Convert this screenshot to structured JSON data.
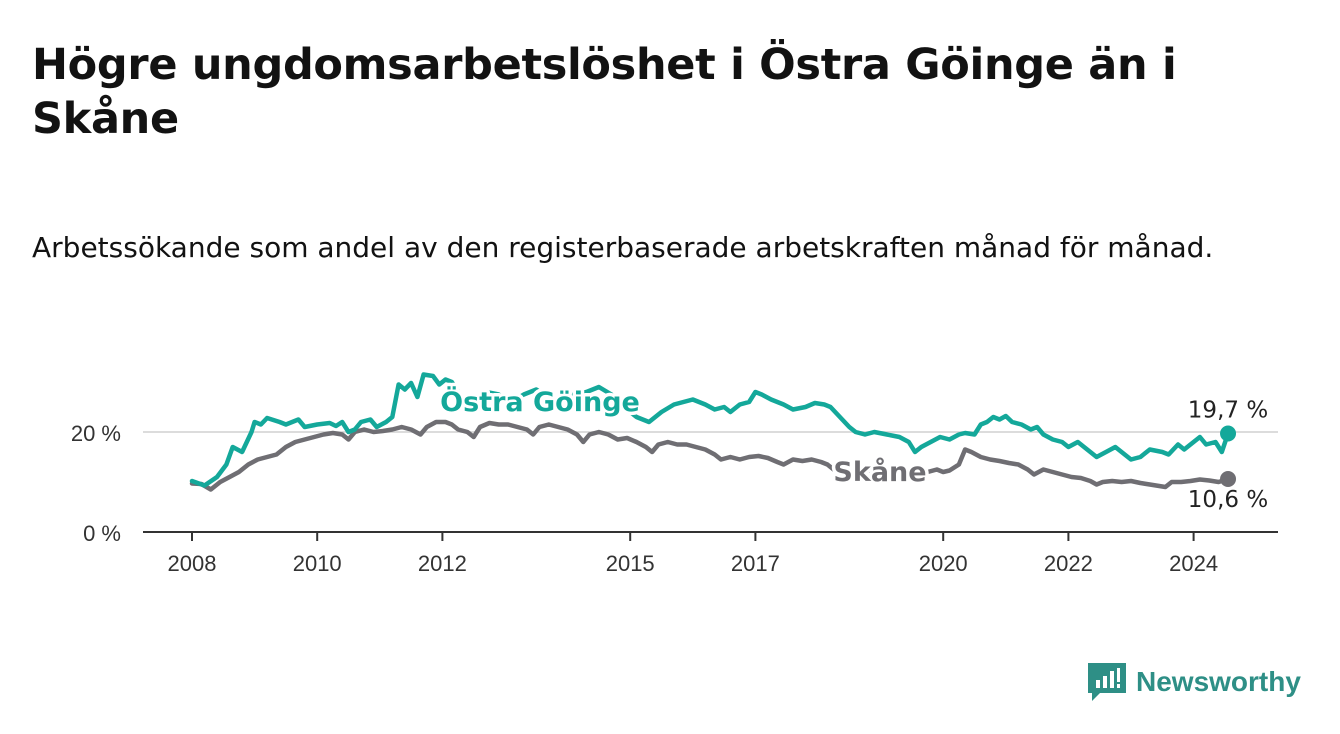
{
  "title": "Högre ungdomsarbetslöshet i Östra Göinge än i Skåne",
  "subtitle": "Arbetssökande som andel av den registerbaserade arbetskraften månad för månad.",
  "brand": {
    "name": "Newsworthy",
    "icon": "newsworthy-logo-icon",
    "color": "#2e8f86"
  },
  "chart_data": {
    "type": "line",
    "title": "Högre ungdomsarbetslöshet i Östra Göinge än i Skåne",
    "subtitle": "Arbetssökande som andel av den registerbaserade arbetskraften månad för månad.",
    "x_ticks": [
      "2008",
      "2010",
      "2012",
      "2015",
      "2017",
      "2020",
      "2022",
      "2024"
    ],
    "y_ticks": [
      "0 %",
      "20 %"
    ],
    "y_tick_values": [
      0,
      20
    ],
    "xlim": [
      2007.6,
      2025.2
    ],
    "ylim": [
      0,
      32
    ],
    "grid": "horizontal",
    "series": [
      {
        "name": "Östra Göinge",
        "color": "#14a89a",
        "end_label": "19,7 %",
        "points": [
          [
            2008.0,
            10.2
          ],
          [
            2008.2,
            9.3
          ],
          [
            2008.4,
            11.0
          ],
          [
            2008.55,
            13.5
          ],
          [
            2008.65,
            17.0
          ],
          [
            2008.8,
            16.0
          ],
          [
            2008.95,
            20.0
          ],
          [
            2009.0,
            22.0
          ],
          [
            2009.1,
            21.5
          ],
          [
            2009.2,
            22.8
          ],
          [
            2009.4,
            22.0
          ],
          [
            2009.5,
            21.5
          ],
          [
            2009.7,
            22.5
          ],
          [
            2009.8,
            21.0
          ],
          [
            2010.0,
            21.5
          ],
          [
            2010.2,
            21.8
          ],
          [
            2010.3,
            21.2
          ],
          [
            2010.4,
            22.0
          ],
          [
            2010.5,
            20.0
          ],
          [
            2010.6,
            20.5
          ],
          [
            2010.7,
            22.0
          ],
          [
            2010.85,
            22.5
          ],
          [
            2010.95,
            21.0
          ],
          [
            2011.1,
            22.0
          ],
          [
            2011.2,
            23.0
          ],
          [
            2011.3,
            29.5
          ],
          [
            2011.4,
            28.5
          ],
          [
            2011.5,
            29.8
          ],
          [
            2011.6,
            27.0
          ],
          [
            2011.7,
            31.5
          ],
          [
            2011.85,
            31.2
          ],
          [
            2011.95,
            29.5
          ],
          [
            2012.05,
            30.5
          ],
          [
            2012.15,
            30.0
          ],
          [
            2012.3,
            27.0
          ],
          [
            2012.5,
            25.0
          ],
          [
            2012.7,
            28.0
          ],
          [
            2012.9,
            27.5
          ],
          [
            2013.1,
            26.0
          ],
          [
            2013.3,
            27.5
          ],
          [
            2013.5,
            28.5
          ],
          [
            2013.7,
            27.0
          ],
          [
            2013.9,
            26.5
          ],
          [
            2014.1,
            27.5
          ],
          [
            2014.3,
            28.0
          ],
          [
            2014.5,
            29.0
          ],
          [
            2014.7,
            27.5
          ],
          [
            2014.9,
            25.0
          ],
          [
            2015.1,
            23.0
          ],
          [
            2015.3,
            22.0
          ],
          [
            2015.5,
            24.0
          ],
          [
            2015.7,
            25.5
          ],
          [
            2015.85,
            26.0
          ],
          [
            2016.0,
            26.5
          ],
          [
            2016.2,
            25.5
          ],
          [
            2016.35,
            24.5
          ],
          [
            2016.5,
            25.0
          ],
          [
            2016.6,
            24.0
          ],
          [
            2016.75,
            25.5
          ],
          [
            2016.9,
            26.0
          ],
          [
            2017.0,
            28.0
          ],
          [
            2017.1,
            27.5
          ],
          [
            2017.25,
            26.5
          ],
          [
            2017.45,
            25.5
          ],
          [
            2017.6,
            24.5
          ],
          [
            2017.8,
            25.0
          ],
          [
            2017.95,
            25.8
          ],
          [
            2018.1,
            25.5
          ],
          [
            2018.2,
            25.0
          ],
          [
            2018.35,
            23.0
          ],
          [
            2018.5,
            21.0
          ],
          [
            2018.6,
            20.0
          ],
          [
            2018.75,
            19.5
          ],
          [
            2018.9,
            20.0
          ],
          [
            2019.1,
            19.5
          ],
          [
            2019.3,
            19.0
          ],
          [
            2019.45,
            18.0
          ],
          [
            2019.55,
            16.0
          ],
          [
            2019.65,
            17.0
          ],
          [
            2019.8,
            18.0
          ],
          [
            2019.95,
            19.0
          ],
          [
            2020.1,
            18.5
          ],
          [
            2020.25,
            19.5
          ],
          [
            2020.35,
            19.8
          ],
          [
            2020.5,
            19.5
          ],
          [
            2020.6,
            21.5
          ],
          [
            2020.7,
            22.0
          ],
          [
            2020.8,
            23.0
          ],
          [
            2020.9,
            22.5
          ],
          [
            2021.0,
            23.2
          ],
          [
            2021.1,
            22.0
          ],
          [
            2021.25,
            21.5
          ],
          [
            2021.4,
            20.5
          ],
          [
            2021.5,
            21.0
          ],
          [
            2021.6,
            19.5
          ],
          [
            2021.75,
            18.5
          ],
          [
            2021.9,
            18.0
          ],
          [
            2022.0,
            17.0
          ],
          [
            2022.15,
            18.0
          ],
          [
            2022.3,
            16.5
          ],
          [
            2022.45,
            15.0
          ],
          [
            2022.6,
            16.0
          ],
          [
            2022.75,
            17.0
          ],
          [
            2022.9,
            15.5
          ],
          [
            2023.0,
            14.5
          ],
          [
            2023.15,
            15.0
          ],
          [
            2023.3,
            16.5
          ],
          [
            2023.5,
            16.0
          ],
          [
            2023.6,
            15.5
          ],
          [
            2023.75,
            17.5
          ],
          [
            2023.85,
            16.5
          ],
          [
            2024.0,
            18.0
          ],
          [
            2024.1,
            19.0
          ],
          [
            2024.2,
            17.5
          ],
          [
            2024.35,
            18.0
          ],
          [
            2024.45,
            16.0
          ],
          [
            2024.55,
            19.7
          ]
        ]
      },
      {
        "name": "Skåne",
        "color": "#6f6e73",
        "end_label": "10,6 %",
        "points": [
          [
            2008.0,
            9.7
          ],
          [
            2008.15,
            9.6
          ],
          [
            2008.3,
            8.5
          ],
          [
            2008.45,
            10.0
          ],
          [
            2008.6,
            11.0
          ],
          [
            2008.75,
            12.0
          ],
          [
            2008.9,
            13.5
          ],
          [
            2009.05,
            14.5
          ],
          [
            2009.2,
            15.0
          ],
          [
            2009.35,
            15.5
          ],
          [
            2009.5,
            17.0
          ],
          [
            2009.65,
            18.0
          ],
          [
            2009.8,
            18.5
          ],
          [
            2009.95,
            19.0
          ],
          [
            2010.1,
            19.5
          ],
          [
            2010.25,
            19.8
          ],
          [
            2010.4,
            19.5
          ],
          [
            2010.5,
            18.5
          ],
          [
            2010.6,
            20.0
          ],
          [
            2010.75,
            20.5
          ],
          [
            2010.9,
            20.0
          ],
          [
            2011.05,
            20.2
          ],
          [
            2011.2,
            20.5
          ],
          [
            2011.35,
            21.0
          ],
          [
            2011.5,
            20.5
          ],
          [
            2011.65,
            19.5
          ],
          [
            2011.75,
            21.0
          ],
          [
            2011.9,
            22.0
          ],
          [
            2012.05,
            22.0
          ],
          [
            2012.15,
            21.5
          ],
          [
            2012.25,
            20.5
          ],
          [
            2012.4,
            20.0
          ],
          [
            2012.5,
            19.0
          ],
          [
            2012.6,
            21.0
          ],
          [
            2012.75,
            21.8
          ],
          [
            2012.9,
            21.5
          ],
          [
            2013.05,
            21.5
          ],
          [
            2013.2,
            21.0
          ],
          [
            2013.35,
            20.5
          ],
          [
            2013.45,
            19.5
          ],
          [
            2013.55,
            21.0
          ],
          [
            2013.7,
            21.5
          ],
          [
            2013.85,
            21.0
          ],
          [
            2014.0,
            20.5
          ],
          [
            2014.15,
            19.5
          ],
          [
            2014.25,
            18.0
          ],
          [
            2014.35,
            19.5
          ],
          [
            2014.5,
            20.0
          ],
          [
            2014.65,
            19.5
          ],
          [
            2014.8,
            18.5
          ],
          [
            2014.95,
            18.8
          ],
          [
            2015.1,
            18.0
          ],
          [
            2015.25,
            17.0
          ],
          [
            2015.35,
            16.0
          ],
          [
            2015.45,
            17.5
          ],
          [
            2015.6,
            18.0
          ],
          [
            2015.75,
            17.5
          ],
          [
            2015.9,
            17.5
          ],
          [
            2016.05,
            17.0
          ],
          [
            2016.2,
            16.5
          ],
          [
            2016.35,
            15.5
          ],
          [
            2016.45,
            14.5
          ],
          [
            2016.6,
            15.0
          ],
          [
            2016.75,
            14.5
          ],
          [
            2016.9,
            15.0
          ],
          [
            2017.05,
            15.2
          ],
          [
            2017.2,
            14.8
          ],
          [
            2017.35,
            14.0
          ],
          [
            2017.45,
            13.5
          ],
          [
            2017.6,
            14.5
          ],
          [
            2017.75,
            14.2
          ],
          [
            2017.9,
            14.5
          ],
          [
            2018.05,
            14.0
          ],
          [
            2018.15,
            13.5
          ],
          [
            2018.25,
            12.5
          ],
          [
            2019.75,
            12.0
          ],
          [
            2019.9,
            12.5
          ],
          [
            2020.0,
            12.0
          ],
          [
            2020.1,
            12.3
          ],
          [
            2020.25,
            13.5
          ],
          [
            2020.35,
            16.5
          ],
          [
            2020.45,
            16.0
          ],
          [
            2020.6,
            15.0
          ],
          [
            2020.75,
            14.5
          ],
          [
            2020.9,
            14.2
          ],
          [
            2021.05,
            13.8
          ],
          [
            2021.2,
            13.5
          ],
          [
            2021.35,
            12.5
          ],
          [
            2021.45,
            11.5
          ],
          [
            2021.6,
            12.5
          ],
          [
            2021.75,
            12.0
          ],
          [
            2021.9,
            11.5
          ],
          [
            2022.05,
            11.0
          ],
          [
            2022.2,
            10.8
          ],
          [
            2022.35,
            10.2
          ],
          [
            2022.45,
            9.5
          ],
          [
            2022.55,
            10.0
          ],
          [
            2022.7,
            10.2
          ],
          [
            2022.85,
            10.0
          ],
          [
            2023.0,
            10.2
          ],
          [
            2023.15,
            9.8
          ],
          [
            2023.3,
            9.5
          ],
          [
            2023.45,
            9.2
          ],
          [
            2023.55,
            9.0
          ],
          [
            2023.65,
            10.0
          ],
          [
            2023.8,
            10.0
          ],
          [
            2023.95,
            10.2
          ],
          [
            2024.1,
            10.5
          ],
          [
            2024.25,
            10.3
          ],
          [
            2024.4,
            10.0
          ],
          [
            2024.55,
            10.6
          ]
        ]
      }
    ]
  }
}
